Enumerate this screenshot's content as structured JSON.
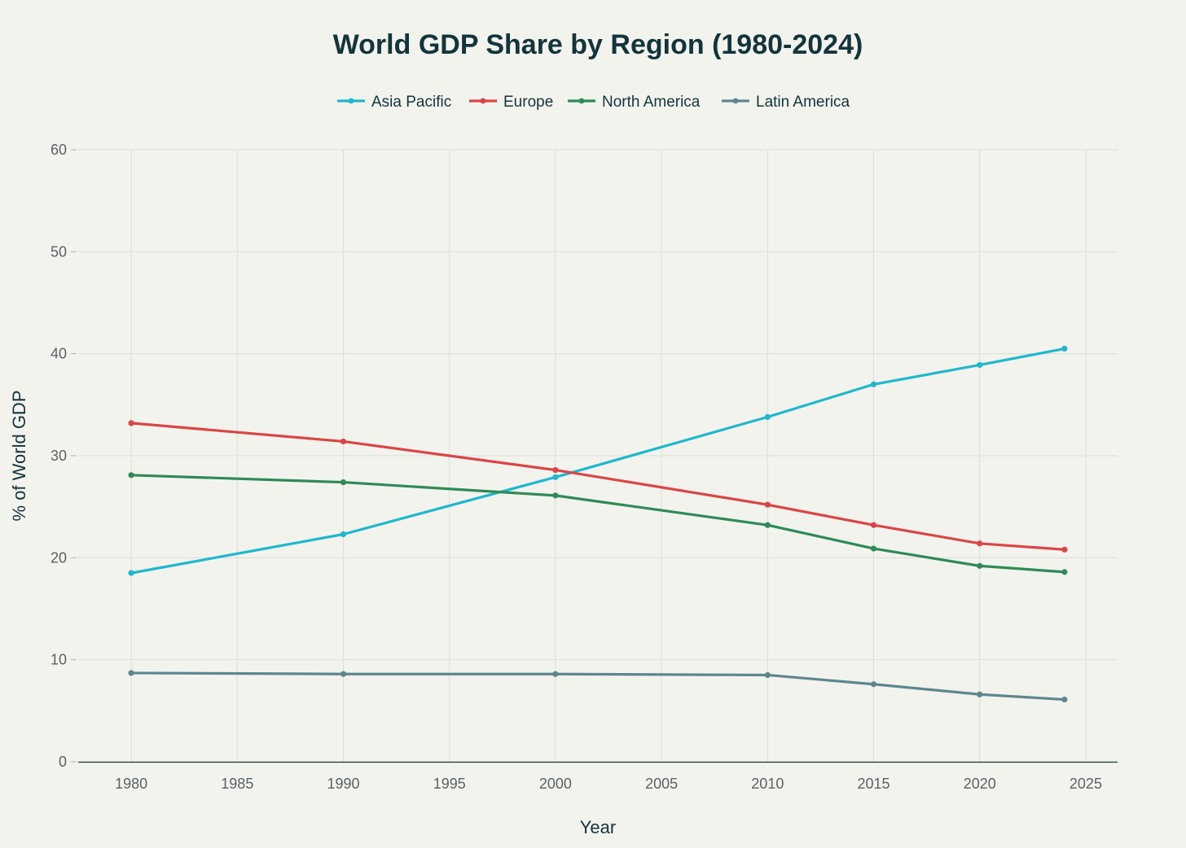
{
  "chart_data": {
    "type": "line",
    "title": "World GDP Share by Region (1980-2024)",
    "xlabel": "Year",
    "ylabel": "% of World GDP",
    "xlim": [
      1977.5,
      2026.5
    ],
    "ylim": [
      0,
      60
    ],
    "xticks": [
      1980,
      1985,
      1990,
      1995,
      2000,
      2005,
      2010,
      2015,
      2020,
      2025
    ],
    "yticks": [
      0,
      10,
      20,
      30,
      40,
      50,
      60
    ],
    "grid": true,
    "legend_position": "top-center",
    "x": [
      1980,
      1990,
      2000,
      2010,
      2015,
      2020,
      2024
    ],
    "series": [
      {
        "name": "Asia Pacific",
        "color": "#1fb8cd",
        "values": [
          18.5,
          22.3,
          27.9,
          33.8,
          37.0,
          38.9,
          40.5
        ]
      },
      {
        "name": "Europe",
        "color": "#db4545",
        "values": [
          33.2,
          31.4,
          28.6,
          25.2,
          23.2,
          21.4,
          20.8
        ]
      },
      {
        "name": "North America",
        "color": "#2e8b57",
        "values": [
          28.1,
          27.4,
          26.1,
          23.2,
          20.9,
          19.2,
          18.6
        ]
      },
      {
        "name": "Latin America",
        "color": "#5d878f",
        "values": [
          8.7,
          8.6,
          8.6,
          8.5,
          7.6,
          6.6,
          6.1
        ]
      }
    ]
  }
}
